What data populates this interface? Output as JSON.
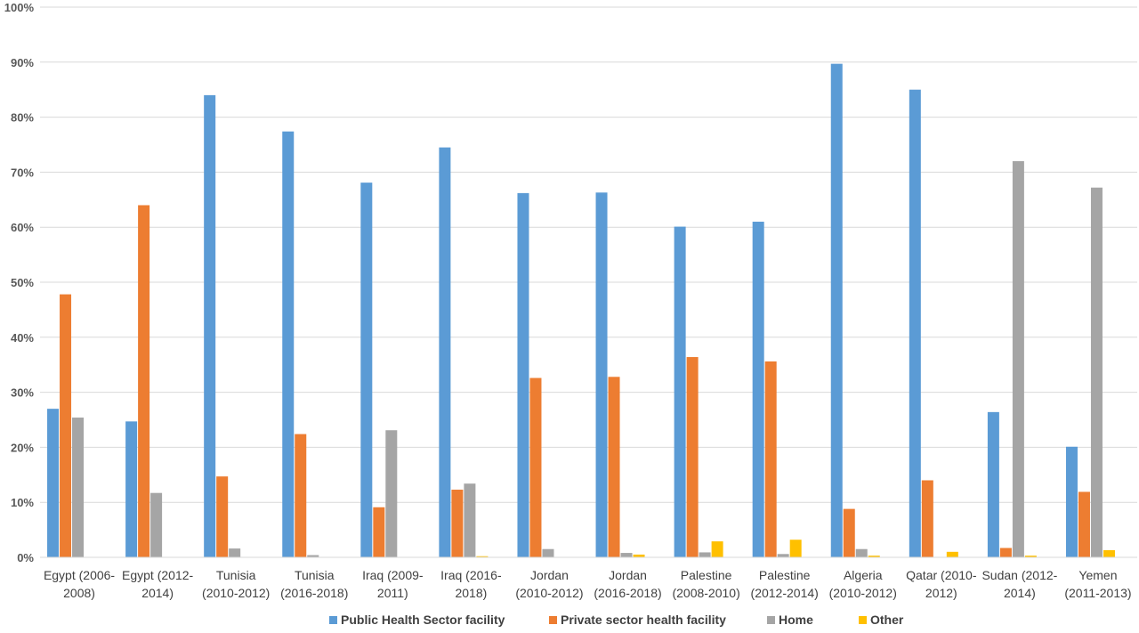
{
  "chart_data": {
    "type": "bar",
    "title": "",
    "xlabel": "",
    "ylabel": "",
    "ylim": [
      0,
      100
    ],
    "yticks": [
      "0%",
      "10%",
      "20%",
      "30%",
      "40%",
      "50%",
      "60%",
      "70%",
      "80%",
      "90%",
      "100%"
    ],
    "grid": true,
    "legend_position": "bottom",
    "categories": [
      [
        "Egypt (2006-",
        "2008)"
      ],
      [
        "Egypt (2012-",
        "2014)"
      ],
      [
        "Tunisia",
        "(2010-2012)"
      ],
      [
        "Tunisia",
        "(2016-2018)"
      ],
      [
        "Iraq (2009-",
        "2011)"
      ],
      [
        "Iraq (2016-",
        "2018)"
      ],
      [
        "Jordan",
        "(2010-2012)"
      ],
      [
        "Jordan",
        "(2016-2018)"
      ],
      [
        "Palestine",
        "(2008-2010)"
      ],
      [
        "Palestine",
        "(2012-2014)"
      ],
      [
        "Algeria",
        "(2010-2012)"
      ],
      [
        "Qatar (2010-",
        "2012)"
      ],
      [
        "Sudan (2012-",
        "2014)"
      ],
      [
        "Yemen",
        "(2011-2013)"
      ]
    ],
    "series": [
      {
        "name": "Public Health Sector facility",
        "color": "#5B9BD5",
        "values": [
          27.0,
          24.7,
          84.0,
          77.4,
          68.1,
          74.5,
          66.2,
          66.3,
          60.1,
          61.0,
          89.7,
          85.0,
          26.4,
          20.1
        ]
      },
      {
        "name": "Private sector health facility",
        "color": "#ED7D31",
        "values": [
          47.8,
          64.0,
          14.7,
          22.4,
          9.1,
          12.3,
          32.6,
          32.8,
          36.4,
          35.6,
          8.8,
          14.0,
          1.7,
          11.9
        ]
      },
      {
        "name": "Home",
        "color": "#A5A5A5",
        "values": [
          25.4,
          11.7,
          1.6,
          0.4,
          23.1,
          13.4,
          1.5,
          0.8,
          0.9,
          0.6,
          1.5,
          0.0,
          72.0,
          67.2
        ]
      },
      {
        "name": "Other",
        "color": "#FFC000",
        "values": [
          0.0,
          0.0,
          0.0,
          0.0,
          0.0,
          0.2,
          0.0,
          0.5,
          2.9,
          3.2,
          0.3,
          1.0,
          0.3,
          1.3
        ]
      }
    ]
  }
}
